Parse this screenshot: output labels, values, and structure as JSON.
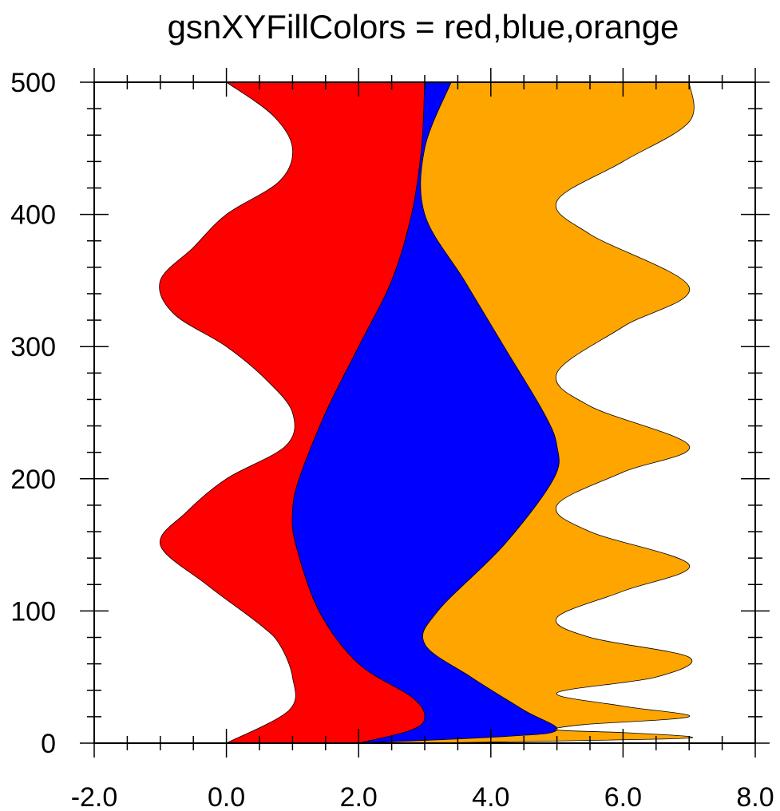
{
  "chart_data": {
    "type": "area",
    "title": "gsnXYFillColors = red,blue,orange",
    "xlabel": "",
    "ylabel": "",
    "xlim": [
      -2.0,
      8.0
    ],
    "ylim": [
      0,
      500
    ],
    "x_ticks": [
      "-2.0",
      "0.0",
      "2.0",
      "4.0",
      "6.0",
      "8.0"
    ],
    "y_ticks": [
      "0",
      "100",
      "200",
      "300",
      "400",
      "500"
    ],
    "fill_colors": [
      "#ff0000",
      "#0000ff",
      "#ffa500"
    ],
    "curves": [
      {
        "points": [
          [
            0.0,
            0
          ],
          [
            0.95,
            25
          ],
          [
            1.0,
            50
          ],
          [
            0.8,
            75
          ],
          [
            0.5,
            90
          ],
          [
            -0.3,
            120
          ],
          [
            -1.0,
            150
          ],
          [
            -0.6,
            175
          ],
          [
            0.0,
            200
          ],
          [
            0.9,
            225
          ],
          [
            1.0,
            250
          ],
          [
            0.6,
            275
          ],
          [
            0.0,
            300
          ],
          [
            -0.8,
            325
          ],
          [
            -1.0,
            350
          ],
          [
            -0.5,
            375
          ],
          [
            0.0,
            400
          ],
          [
            0.8,
            425
          ],
          [
            1.0,
            450
          ],
          [
            0.7,
            475
          ],
          [
            0.0,
            500
          ]
        ]
      },
      {
        "points": [
          [
            2.0,
            0
          ],
          [
            2.8,
            10
          ],
          [
            3.0,
            20
          ],
          [
            2.8,
            35
          ],
          [
            2.0,
            60
          ],
          [
            1.4,
            100
          ],
          [
            1.05,
            150
          ],
          [
            1.0,
            175
          ],
          [
            1.1,
            200
          ],
          [
            1.5,
            250
          ],
          [
            2.0,
            300
          ],
          [
            2.5,
            350
          ],
          [
            2.8,
            400
          ],
          [
            2.95,
            450
          ],
          [
            3.0,
            500
          ]
        ]
      },
      {
        "points": [
          [
            2.0,
            0
          ],
          [
            4.2,
            5
          ],
          [
            5.0,
            10
          ],
          [
            4.5,
            25
          ],
          [
            3.7,
            50
          ],
          [
            3.0,
            75
          ],
          [
            3.2,
            100
          ],
          [
            4.2,
            150
          ],
          [
            4.95,
            200
          ],
          [
            5.0,
            225
          ],
          [
            4.8,
            250
          ],
          [
            4.2,
            300
          ],
          [
            3.6,
            350
          ],
          [
            3.0,
            400
          ],
          [
            3.0,
            450
          ],
          [
            3.4,
            500
          ]
        ]
      },
      {
        "points": [
          [
            3.0,
            0
          ],
          [
            6.5,
            3
          ],
          [
            7.0,
            5
          ],
          [
            6.0,
            8
          ],
          [
            5.0,
            10
          ],
          [
            5.4,
            14
          ],
          [
            7.0,
            20
          ],
          [
            6.0,
            28
          ],
          [
            5.0,
            38
          ],
          [
            6.5,
            50
          ],
          [
            7.0,
            65
          ],
          [
            5.5,
            80
          ],
          [
            5.0,
            95
          ],
          [
            6.0,
            115
          ],
          [
            7.0,
            135
          ],
          [
            5.5,
            160
          ],
          [
            5.0,
            180
          ],
          [
            6.0,
            205
          ],
          [
            7.0,
            225
          ],
          [
            5.5,
            255
          ],
          [
            5.0,
            280
          ],
          [
            6.0,
            315
          ],
          [
            7.0,
            345
          ],
          [
            5.5,
            385
          ],
          [
            5.0,
            410
          ],
          [
            6.0,
            440
          ],
          [
            7.0,
            470
          ],
          [
            7.0,
            500
          ]
        ]
      }
    ]
  }
}
